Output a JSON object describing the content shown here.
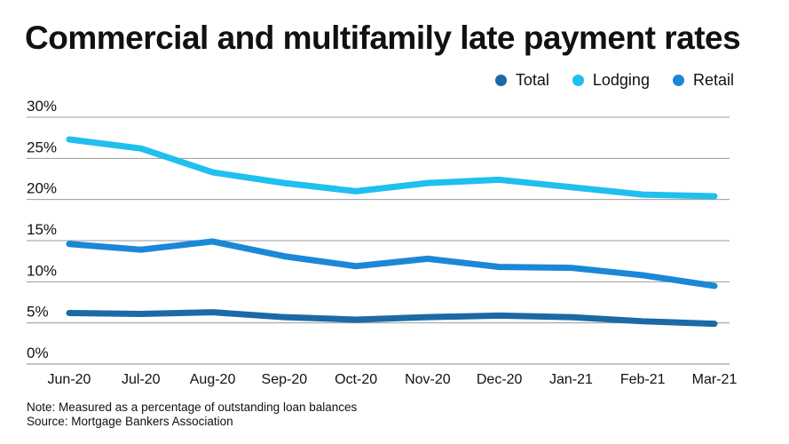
{
  "chart_data": {
    "type": "line",
    "title": "Commercial and multifamily late payment rates",
    "xlabel": "",
    "ylabel": "",
    "ylim": [
      0,
      30
    ],
    "yticks": [
      0,
      5,
      10,
      15,
      20,
      25,
      30
    ],
    "ytick_labels": [
      "0%",
      "5%",
      "10%",
      "15%",
      "20%",
      "25%",
      "30%"
    ],
    "grid": true,
    "legend_position": "top-right",
    "categories": [
      "Jun-20",
      "Jul-20",
      "Aug-20",
      "Sep-20",
      "Oct-20",
      "Nov-20",
      "Dec-20",
      "Jan-21",
      "Feb-21",
      "Mar-21"
    ],
    "series": [
      {
        "name": "Total",
        "color": "#1c6aa5",
        "values": [
          6.2,
          6.1,
          6.3,
          5.7,
          5.4,
          5.7,
          5.9,
          5.7,
          5.2,
          4.9
        ]
      },
      {
        "name": "Lodging",
        "color": "#1fbfef",
        "values": [
          27.3,
          26.2,
          23.3,
          22.0,
          21.0,
          22.0,
          22.4,
          21.5,
          20.6,
          20.4
        ]
      },
      {
        "name": "Retail",
        "color": "#1a88d6",
        "values": [
          14.6,
          13.9,
          14.9,
          13.1,
          11.9,
          12.8,
          11.8,
          11.7,
          10.8,
          9.5
        ]
      }
    ]
  },
  "notes": {
    "note": "Note: Measured as a percentage of outstanding loan balances",
    "source": "Source: Mortgage Bankers Association"
  }
}
